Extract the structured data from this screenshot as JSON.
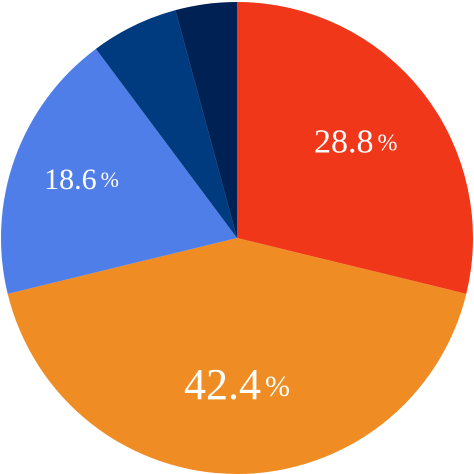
{
  "chart_data": {
    "type": "pie",
    "start_angle": "12 o'clock",
    "direction": "clockwise",
    "slices": [
      {
        "value": 28.8,
        "label": "28.8",
        "unit": "%",
        "color": "#f03719"
      },
      {
        "value": 42.4,
        "label": "42.4",
        "unit": "%",
        "color": "#ef8c24"
      },
      {
        "value": 18.6,
        "label": "18.6",
        "unit": "%",
        "color": "#507ee8"
      },
      {
        "value": 6.0,
        "label": "",
        "unit": "",
        "color": "#003b80"
      },
      {
        "value": 4.2,
        "label": "",
        "unit": "",
        "color": "#002154"
      }
    ]
  }
}
